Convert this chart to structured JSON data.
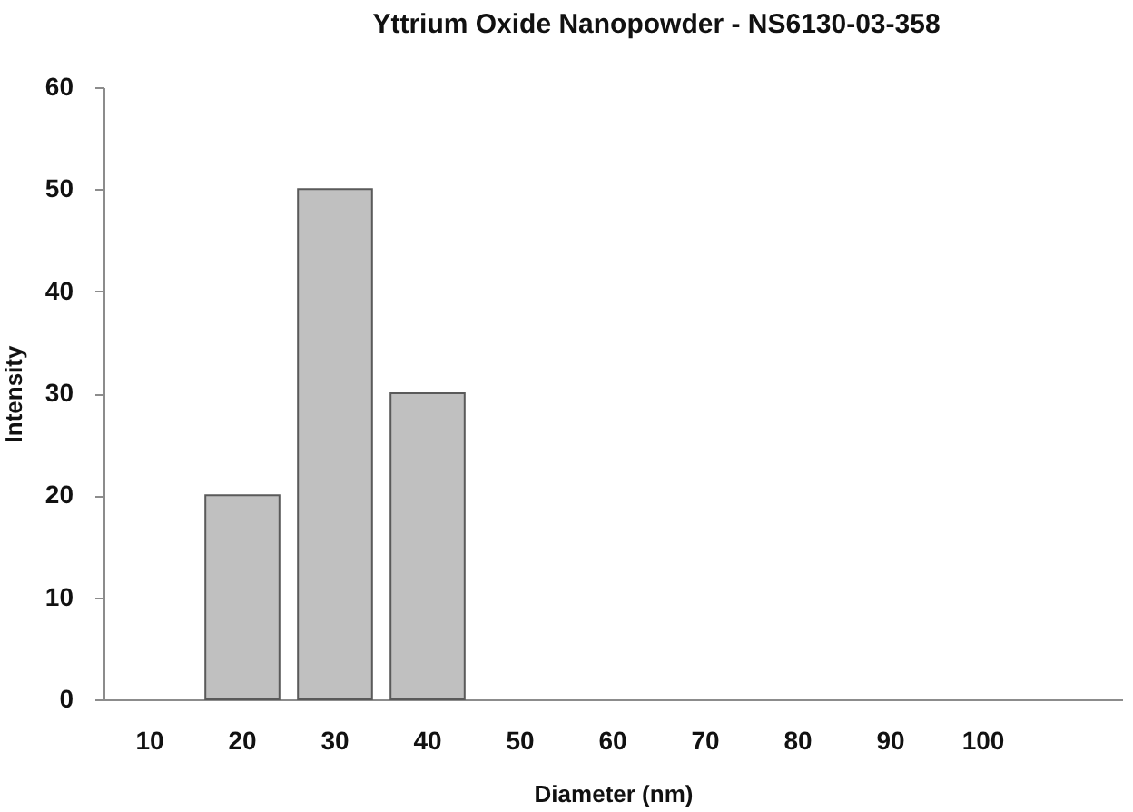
{
  "chart_data": {
    "type": "bar",
    "title": "Yttrium Oxide Nanopowder - NS6130-03-358",
    "xlabel": "Diameter (nm)",
    "ylabel": "Intensity",
    "categories": [
      "10",
      "20",
      "30",
      "40",
      "50",
      "60",
      "70",
      "80",
      "90",
      "100",
      null
    ],
    "values": [
      null,
      20,
      50,
      30,
      null,
      null,
      null,
      null,
      null,
      null,
      null
    ],
    "color": "#c0c0c0",
    "ylim": [
      0,
      60
    ],
    "yticks": [
      0,
      10,
      20,
      30,
      40,
      50,
      60
    ],
    "grid": false
  }
}
